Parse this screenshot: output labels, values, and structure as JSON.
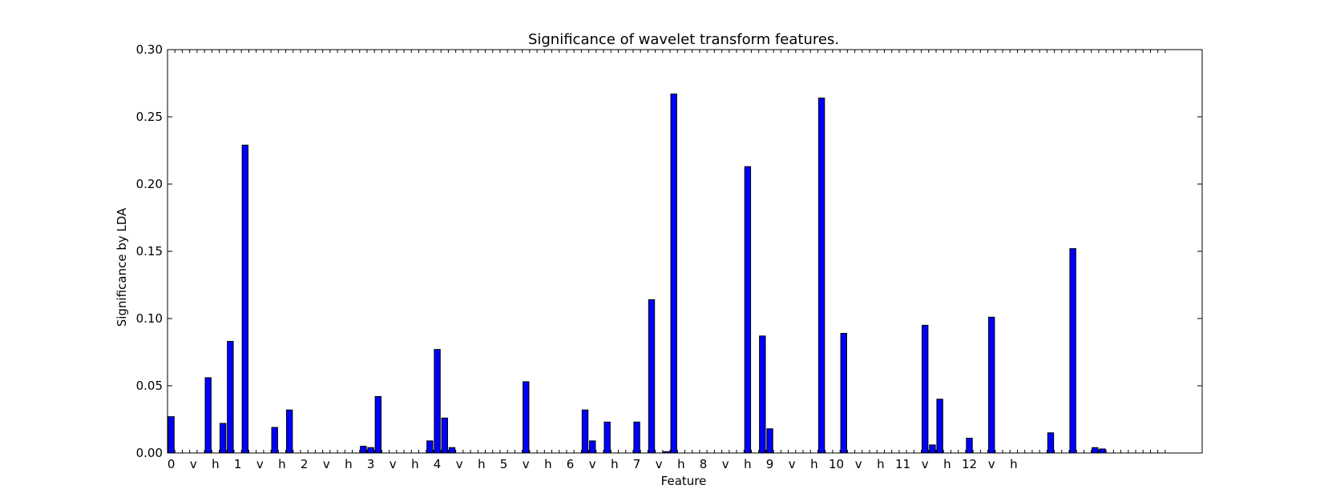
{
  "chart_data": {
    "type": "bar",
    "title": "Significance of wavelet transform features.",
    "xlabel": "Feature",
    "ylabel": "Significance by LDA",
    "ylim": [
      0,
      0.3
    ],
    "xlim": [
      0,
      140
    ],
    "yticks": [
      "0.00",
      "0.05",
      "0.10",
      "0.15",
      "0.20",
      "0.25",
      "0.30"
    ],
    "xtick_labels": [
      "0",
      "v",
      "h",
      "1",
      "v",
      "h",
      "2",
      "v",
      "h",
      "3",
      "v",
      "h",
      "4",
      "v",
      "h",
      "5",
      "v",
      "h",
      "6",
      "v",
      "h",
      "7",
      "v",
      "h",
      "8",
      "v",
      "h",
      "9",
      "v",
      "h",
      "10",
      "v",
      "h",
      "11",
      "v",
      "h",
      "12",
      "v",
      "h"
    ],
    "bar_color": "#0000ff",
    "values": [
      0.027,
      0,
      0,
      0,
      0,
      0.056,
      0,
      0.022,
      0.083,
      0,
      0.229,
      0,
      0,
      0,
      0.019,
      0,
      0.032,
      0,
      0,
      0,
      0,
      0,
      0,
      0,
      0,
      0,
      0.005,
      0.004,
      0.042,
      0,
      0,
      0,
      0,
      0,
      0,
      0.009,
      0.077,
      0.026,
      0.004,
      0,
      0,
      0,
      0,
      0,
      0,
      0,
      0,
      0,
      0.053,
      0,
      0,
      0,
      0,
      0,
      0,
      0,
      0.032,
      0.009,
      0,
      0.023,
      0,
      0,
      0,
      0.023,
      0,
      0.114,
      0,
      0.001,
      0.267,
      0,
      0,
      0,
      0,
      0,
      0,
      0,
      0,
      0,
      0.213,
      0,
      0.087,
      0.018,
      0,
      0,
      0,
      0,
      0,
      0,
      0.264,
      0,
      0,
      0.089,
      0,
      0,
      0,
      0,
      0,
      0,
      0,
      0,
      0,
      0,
      0.095,
      0.006,
      0.04,
      0,
      0,
      0,
      0.011,
      0,
      0,
      0.101,
      0,
      0,
      0,
      0,
      0,
      0,
      0,
      0.015,
      0,
      0,
      0.152,
      0,
      0,
      0.004,
      0.003,
      0,
      0,
      0,
      0,
      0,
      0,
      0,
      0
    ]
  }
}
